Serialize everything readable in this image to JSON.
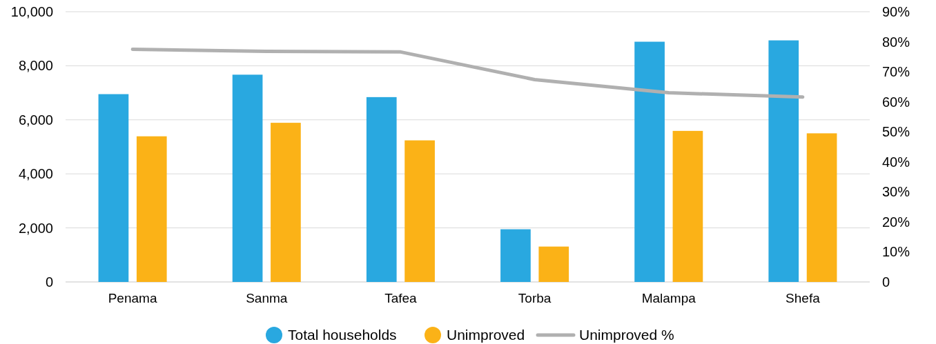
{
  "chart_data": {
    "type": "bar",
    "categories": [
      "Penama",
      "Sanma",
      "Tafea",
      "Torba",
      "Malampa",
      "Shefa"
    ],
    "series": [
      {
        "name": "Total households",
        "color": "#29a8e0",
        "values": [
          6950,
          7670,
          6840,
          1950,
          8890,
          8940
        ]
      },
      {
        "name": "Unimproved",
        "color": "#fbb217",
        "values": [
          5390,
          5890,
          5240,
          1310,
          5590,
          5500
        ]
      },
      {
        "name": "Unimproved %",
        "type": "line",
        "axis": "y2",
        "color": "#b0b0b0",
        "values": [
          77.5,
          76.8,
          76.6,
          67.4,
          63.0,
          61.6
        ]
      }
    ],
    "ylim": [
      0,
      10000
    ],
    "yticks": [
      {
        "value": 0,
        "label": "0"
      },
      {
        "value": 2000,
        "label": "2,000"
      },
      {
        "value": 4000,
        "label": "4,000"
      },
      {
        "value": 6000,
        "label": "6,000"
      },
      {
        "value": 8000,
        "label": "8,000"
      },
      {
        "value": 10000,
        "label": "10,000"
      }
    ],
    "y2lim": [
      0,
      90
    ],
    "y2ticks": [
      {
        "value": 0,
        "label": "0"
      },
      {
        "value": 10,
        "label": "10%"
      },
      {
        "value": 20,
        "label": "20%"
      },
      {
        "value": 30,
        "label": "30%"
      },
      {
        "value": 40,
        "label": "40%"
      },
      {
        "value": 50,
        "label": "50%"
      },
      {
        "value": 60,
        "label": "60%"
      },
      {
        "value": 70,
        "label": "70%"
      },
      {
        "value": 80,
        "label": "80%"
      },
      {
        "value": 90,
        "label": "90%"
      }
    ],
    "grid": "y",
    "legend": "bottom",
    "marker": "none"
  }
}
